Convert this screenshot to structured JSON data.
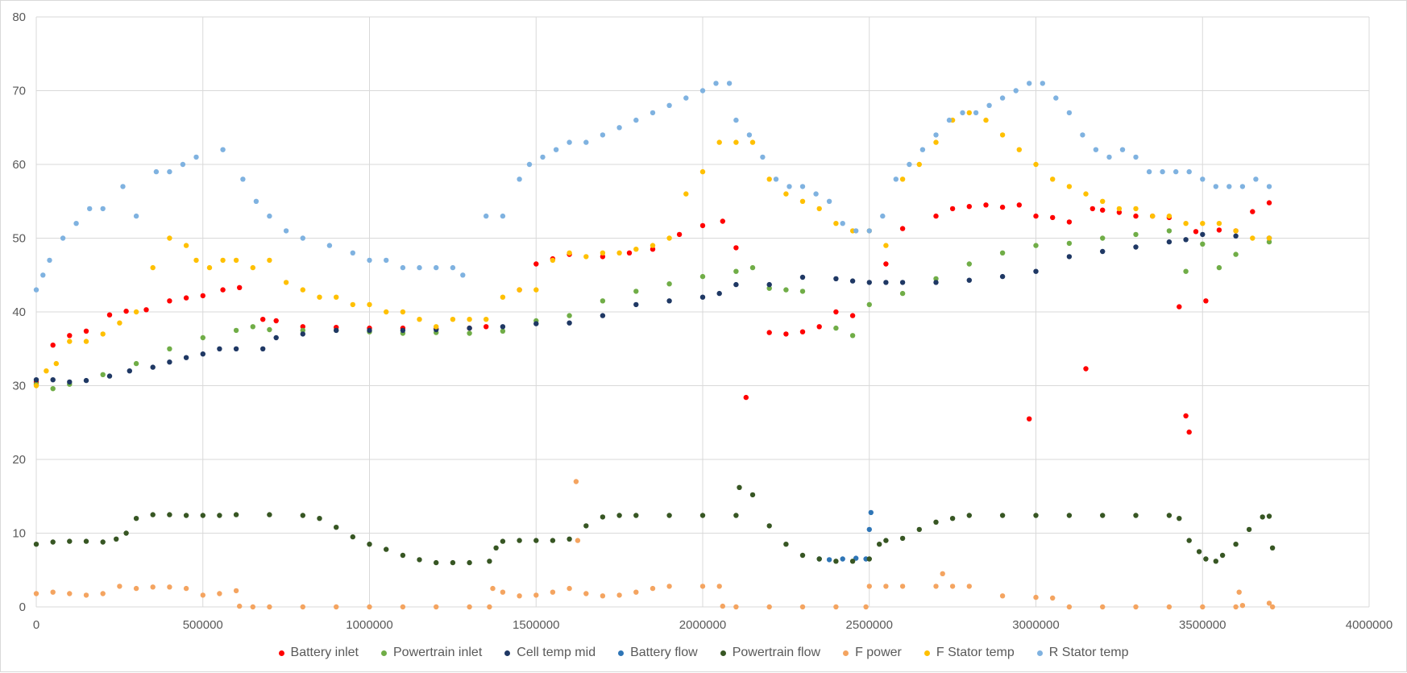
{
  "chart_data": {
    "type": "scatter",
    "title": "",
    "xlabel": "",
    "ylabel": "",
    "xlim": [
      0,
      4000000
    ],
    "ylim": [
      0,
      80
    ],
    "x_ticks": [
      0,
      500000,
      1000000,
      1500000,
      2000000,
      2500000,
      3000000,
      3500000,
      4000000
    ],
    "x_tick_labels": [
      "0",
      "500000",
      "1000000",
      "1500000",
      "2000000",
      "2500000",
      "3000000",
      "3500000",
      "4000000"
    ],
    "y_ticks": [
      0,
      10,
      20,
      30,
      40,
      50,
      60,
      70,
      80
    ],
    "y_tick_labels": [
      "0",
      "10",
      "20",
      "30",
      "40",
      "50",
      "60",
      "70",
      "80"
    ],
    "grid": true,
    "legend_position": "bottom",
    "series": [
      {
        "name": "Battery inlet",
        "color": "#ff0000",
        "x": [
          0,
          50000,
          100000,
          150000,
          220000,
          270000,
          330000,
          400000,
          450000,
          500000,
          560000,
          610000,
          680000,
          720000,
          800000,
          900000,
          1000000,
          1100000,
          1200000,
          1300000,
          1350000,
          1450000,
          1500000,
          1550000,
          1600000,
          1700000,
          1780000,
          1850000,
          1930000,
          2000000,
          2060000,
          2100000,
          2130000,
          2200000,
          2250000,
          2300000,
          2350000,
          2400000,
          2450000,
          2550000,
          2600000,
          2700000,
          2750000,
          2800000,
          2850000,
          2900000,
          2950000,
          2980000,
          3000000,
          3050000,
          3100000,
          3150000,
          3170000,
          3200000,
          3250000,
          3300000,
          3350000,
          3400000,
          3430000,
          3450000,
          3460000,
          3480000,
          3510000,
          3550000,
          3600000,
          3650000,
          3700000
        ],
        "y": [
          30.5,
          35.5,
          36.8,
          37.4,
          39.6,
          40.1,
          40.3,
          41.5,
          41.9,
          42.2,
          43.0,
          43.3,
          39.0,
          38.8,
          38.0,
          37.9,
          37.8,
          37.8,
          37.7,
          37.8,
          38.0,
          43.0,
          46.5,
          47.2,
          47.8,
          47.5,
          48.0,
          48.5,
          50.5,
          51.7,
          52.3,
          48.7,
          28.4,
          37.2,
          37.0,
          37.3,
          38.0,
          40.0,
          39.5,
          46.5,
          51.3,
          53.0,
          54.0,
          54.3,
          54.5,
          54.2,
          54.5,
          25.5,
          53.0,
          52.8,
          52.2,
          32.3,
          54.0,
          53.8,
          53.5,
          53.0,
          53.0,
          52.8,
          40.7,
          25.9,
          23.7,
          50.9,
          41.5,
          51.1,
          51.0,
          53.6,
          54.8
        ]
      },
      {
        "name": "Powertrain inlet",
        "color": "#70ad47",
        "x": [
          0,
          50000,
          100000,
          200000,
          300000,
          400000,
          500000,
          600000,
          650000,
          700000,
          800000,
          900000,
          1000000,
          1100000,
          1200000,
          1300000,
          1400000,
          1500000,
          1600000,
          1700000,
          1800000,
          1900000,
          2000000,
          2100000,
          2150000,
          2200000,
          2250000,
          2300000,
          2400000,
          2450000,
          2500000,
          2600000,
          2700000,
          2800000,
          2900000,
          3000000,
          3100000,
          3200000,
          3300000,
          3400000,
          3450000,
          3500000,
          3550000,
          3600000,
          3700000
        ],
        "y": [
          30.2,
          29.6,
          30.2,
          31.5,
          33.0,
          35.0,
          36.5,
          37.5,
          38.0,
          37.6,
          37.5,
          37.5,
          37.3,
          37.1,
          37.2,
          37.1,
          37.4,
          38.8,
          39.5,
          41.5,
          42.8,
          43.8,
          44.8,
          45.5,
          46.0,
          43.2,
          43.0,
          42.8,
          37.8,
          36.8,
          41.0,
          42.5,
          44.5,
          46.5,
          48.0,
          49.0,
          49.3,
          50.0,
          50.5,
          51.0,
          45.5,
          49.2,
          46.0,
          47.8,
          49.5
        ]
      },
      {
        "name": "Cell temp mid",
        "color": "#1f3864",
        "x": [
          0,
          50000,
          100000,
          150000,
          220000,
          280000,
          350000,
          400000,
          450000,
          500000,
          550000,
          600000,
          680000,
          720000,
          800000,
          900000,
          1000000,
          1100000,
          1200000,
          1300000,
          1400000,
          1500000,
          1600000,
          1700000,
          1800000,
          1900000,
          2000000,
          2050000,
          2100000,
          2200000,
          2300000,
          2400000,
          2450000,
          2500000,
          2550000,
          2600000,
          2700000,
          2800000,
          2900000,
          3000000,
          3100000,
          3200000,
          3300000,
          3400000,
          3450000,
          3500000,
          3600000,
          3700000
        ],
        "y": [
          30.8,
          30.8,
          30.5,
          30.7,
          31.3,
          32.0,
          32.5,
          33.2,
          33.8,
          34.3,
          35.0,
          35.0,
          35.0,
          36.5,
          37.0,
          37.5,
          37.5,
          37.5,
          37.6,
          37.8,
          38.0,
          38.4,
          38.5,
          39.5,
          41.0,
          41.5,
          42.0,
          42.5,
          43.7,
          43.7,
          44.7,
          44.5,
          44.2,
          44.0,
          44.0,
          44.0,
          44.0,
          44.3,
          44.8,
          45.5,
          47.5,
          48.2,
          48.8,
          49.5,
          49.8,
          50.5,
          50.3,
          50.0
        ]
      },
      {
        "name": "Battery flow",
        "color": "#2e75b6",
        "x": [
          2350000,
          2380000,
          2420000,
          2460000,
          2490000,
          2500000,
          2505000
        ],
        "y": [
          6.5,
          6.4,
          6.5,
          6.6,
          6.5,
          10.5,
          12.8
        ]
      },
      {
        "name": "Powertrain flow",
        "color": "#375623",
        "x": [
          0,
          50000,
          100000,
          150000,
          200000,
          240000,
          270000,
          300000,
          350000,
          400000,
          450000,
          500000,
          550000,
          600000,
          700000,
          800000,
          850000,
          900000,
          950000,
          1000000,
          1050000,
          1100000,
          1150000,
          1200000,
          1250000,
          1300000,
          1360000,
          1380000,
          1400000,
          1450000,
          1500000,
          1550000,
          1600000,
          1650000,
          1700000,
          1750000,
          1800000,
          1900000,
          2000000,
          2100000,
          2110000,
          2150000,
          2200000,
          2250000,
          2300000,
          2350000,
          2400000,
          2450000,
          2500000,
          2530000,
          2550000,
          2600000,
          2650000,
          2700000,
          2750000,
          2800000,
          2900000,
          3000000,
          3100000,
          3200000,
          3300000,
          3400000,
          3430000,
          3460000,
          3490000,
          3510000,
          3540000,
          3560000,
          3600000,
          3640000,
          3680000,
          3700000,
          3710000
        ],
        "y": [
          8.5,
          8.8,
          8.9,
          8.9,
          8.8,
          9.2,
          10.0,
          12.0,
          12.5,
          12.5,
          12.4,
          12.4,
          12.4,
          12.5,
          12.5,
          12.4,
          12.0,
          10.8,
          9.5,
          8.5,
          7.8,
          7.0,
          6.4,
          6.0,
          6.0,
          6.0,
          6.2,
          8.0,
          8.9,
          9.0,
          9.0,
          9.0,
          9.2,
          11.0,
          12.2,
          12.4,
          12.4,
          12.4,
          12.4,
          12.4,
          16.2,
          15.2,
          11.0,
          8.5,
          7.0,
          6.5,
          6.2,
          6.2,
          6.5,
          8.5,
          9.0,
          9.3,
          10.5,
          11.5,
          12.0,
          12.4,
          12.4,
          12.4,
          12.4,
          12.4,
          12.4,
          12.4,
          12.0,
          9.0,
          7.5,
          6.5,
          6.2,
          7.0,
          8.5,
          10.5,
          12.2,
          12.3,
          8.0
        ]
      },
      {
        "name": "F power",
        "color": "#f4a460",
        "x": [
          0,
          50000,
          100000,
          150000,
          200000,
          250000,
          300000,
          350000,
          400000,
          450000,
          500000,
          550000,
          600000,
          610000,
          650000,
          700000,
          800000,
          900000,
          1000000,
          1100000,
          1200000,
          1300000,
          1360000,
          1370000,
          1400000,
          1450000,
          1500000,
          1550000,
          1600000,
          1620000,
          1625000,
          1650000,
          1700000,
          1750000,
          1800000,
          1850000,
          1900000,
          2000000,
          2050000,
          2060000,
          2100000,
          2200000,
          2300000,
          2400000,
          2490000,
          2500000,
          2550000,
          2600000,
          2700000,
          2720000,
          2750000,
          2800000,
          2900000,
          3000000,
          3050000,
          3100000,
          3200000,
          3300000,
          3400000,
          3500000,
          3600000,
          3610000,
          3620000,
          3700000,
          3710000
        ],
        "y": [
          1.8,
          2.0,
          1.8,
          1.6,
          1.8,
          2.8,
          2.5,
          2.7,
          2.7,
          2.5,
          1.6,
          1.8,
          2.2,
          0.1,
          0.0,
          0.0,
          0.0,
          0.0,
          0.0,
          0.0,
          0.0,
          0.0,
          0.0,
          2.5,
          2.0,
          1.5,
          1.6,
          2.0,
          2.5,
          17.0,
          9.0,
          1.8,
          1.5,
          1.6,
          2.0,
          2.5,
          2.8,
          2.8,
          2.8,
          0.1,
          0.0,
          0.0,
          0.0,
          0.0,
          0.0,
          2.8,
          2.8,
          2.8,
          2.8,
          4.5,
          2.8,
          2.8,
          1.5,
          1.3,
          1.2,
          0.0,
          0.0,
          0.0,
          0.0,
          0.0,
          0.0,
          2.0,
          0.2,
          0.5,
          0.0
        ]
      },
      {
        "name": "F Stator temp",
        "color": "#ffc000",
        "x": [
          0,
          30000,
          60000,
          100000,
          150000,
          200000,
          250000,
          300000,
          350000,
          400000,
          450000,
          480000,
          520000,
          560000,
          600000,
          650000,
          700000,
          750000,
          800000,
          850000,
          900000,
          950000,
          1000000,
          1050000,
          1100000,
          1150000,
          1200000,
          1250000,
          1300000,
          1350000,
          1400000,
          1450000,
          1500000,
          1550000,
          1600000,
          1650000,
          1700000,
          1750000,
          1800000,
          1850000,
          1900000,
          1950000,
          2000000,
          2050000,
          2100000,
          2150000,
          2200000,
          2250000,
          2300000,
          2350000,
          2400000,
          2450000,
          2500000,
          2550000,
          2600000,
          2650000,
          2700000,
          2750000,
          2800000,
          2850000,
          2900000,
          2950000,
          3000000,
          3050000,
          3100000,
          3150000,
          3200000,
          3250000,
          3300000,
          3350000,
          3400000,
          3450000,
          3500000,
          3550000,
          3600000,
          3650000,
          3700000
        ],
        "y": [
          30.0,
          32.0,
          33.0,
          36.0,
          36.0,
          37.0,
          38.5,
          40.0,
          46.0,
          50.0,
          49.0,
          47.0,
          46.0,
          47.0,
          47.0,
          46.0,
          47.0,
          44.0,
          43.0,
          42.0,
          42.0,
          41.0,
          41.0,
          40.0,
          40.0,
          39.0,
          38.0,
          39.0,
          39.0,
          39.0,
          42.0,
          43.0,
          43.0,
          47.0,
          48.0,
          47.5,
          48.0,
          48.0,
          48.5,
          49.0,
          50.0,
          56.0,
          59.0,
          63.0,
          63.0,
          63.0,
          58.0,
          56.0,
          55.0,
          54.0,
          52.0,
          51.0,
          51.0,
          49.0,
          58.0,
          60.0,
          63.0,
          66.0,
          67.0,
          66.0,
          64.0,
          62.0,
          60.0,
          58.0,
          57.0,
          56.0,
          55.0,
          54.0,
          54.0,
          53.0,
          53.0,
          52.0,
          52.0,
          52.0,
          51.0,
          50.0,
          50.0
        ]
      },
      {
        "name": "R Stator temp",
        "color": "#7fb2e0",
        "x": [
          0,
          20000,
          40000,
          80000,
          120000,
          160000,
          200000,
          260000,
          300000,
          360000,
          400000,
          440000,
          480000,
          560000,
          620000,
          660000,
          700000,
          750000,
          800000,
          880000,
          950000,
          1000000,
          1050000,
          1100000,
          1150000,
          1200000,
          1250000,
          1280000,
          1350000,
          1400000,
          1450000,
          1480000,
          1520000,
          1560000,
          1600000,
          1650000,
          1700000,
          1750000,
          1800000,
          1850000,
          1900000,
          1950000,
          2000000,
          2040000,
          2080000,
          2100000,
          2140000,
          2180000,
          2220000,
          2260000,
          2300000,
          2340000,
          2380000,
          2420000,
          2460000,
          2500000,
          2540000,
          2580000,
          2620000,
          2660000,
          2700000,
          2740000,
          2780000,
          2820000,
          2860000,
          2900000,
          2940000,
          2980000,
          3020000,
          3060000,
          3100000,
          3140000,
          3180000,
          3220000,
          3260000,
          3300000,
          3340000,
          3380000,
          3420000,
          3460000,
          3500000,
          3540000,
          3580000,
          3620000,
          3660000,
          3700000
        ],
        "y": [
          43.0,
          45.0,
          47.0,
          50.0,
          52.0,
          54.0,
          54.0,
          57.0,
          53.0,
          59.0,
          59.0,
          60.0,
          61.0,
          62.0,
          58.0,
          55.0,
          53.0,
          51.0,
          50.0,
          49.0,
          48.0,
          47.0,
          47.0,
          46.0,
          46.0,
          46.0,
          46.0,
          45.0,
          53.0,
          53.0,
          58.0,
          60.0,
          61.0,
          62.0,
          63.0,
          63.0,
          64.0,
          65.0,
          66.0,
          67.0,
          68.0,
          69.0,
          70.0,
          71.0,
          71.0,
          66.0,
          64.0,
          61.0,
          58.0,
          57.0,
          57.0,
          56.0,
          55.0,
          52.0,
          51.0,
          51.0,
          53.0,
          58.0,
          60.0,
          62.0,
          64.0,
          66.0,
          67.0,
          67.0,
          68.0,
          69.0,
          70.0,
          71.0,
          71.0,
          69.0,
          67.0,
          64.0,
          62.0,
          61.0,
          62.0,
          61.0,
          59.0,
          59.0,
          59.0,
          59.0,
          58.0,
          57.0,
          57.0,
          57.0,
          58.0,
          57.0
        ]
      }
    ]
  }
}
